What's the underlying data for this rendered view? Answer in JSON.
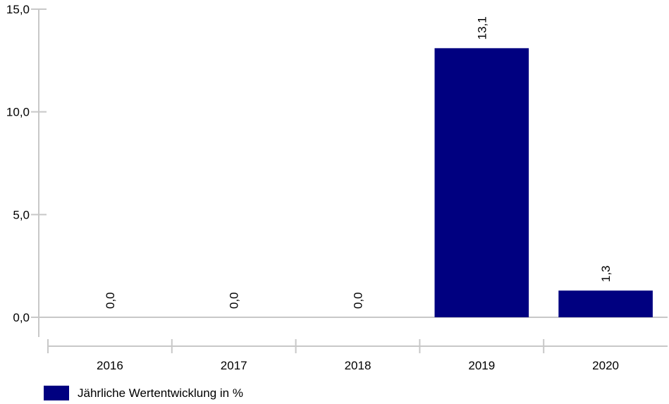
{
  "chart_data": {
    "type": "bar",
    "categories": [
      "2016",
      "2017",
      "2018",
      "2019",
      "2020"
    ],
    "series": [
      {
        "name": "Jährliche Wertentwicklung in %",
        "values": [
          0.0,
          0.0,
          0.0,
          13.1,
          1.3
        ],
        "color": "#000080"
      }
    ],
    "data_labels": [
      "0,0",
      "0,0",
      "0,0",
      "13,1",
      "1,3"
    ],
    "y_ticks": [
      0,
      5,
      10,
      15
    ],
    "y_tick_labels": [
      "0,0",
      "5,0",
      "10,0",
      "15,0"
    ],
    "ylim": [
      0,
      15
    ],
    "title": "",
    "xlabel": "",
    "ylabel": "",
    "grid": false,
    "legend_position": "bottom-left",
    "axis_color": "#c8c8c8"
  }
}
